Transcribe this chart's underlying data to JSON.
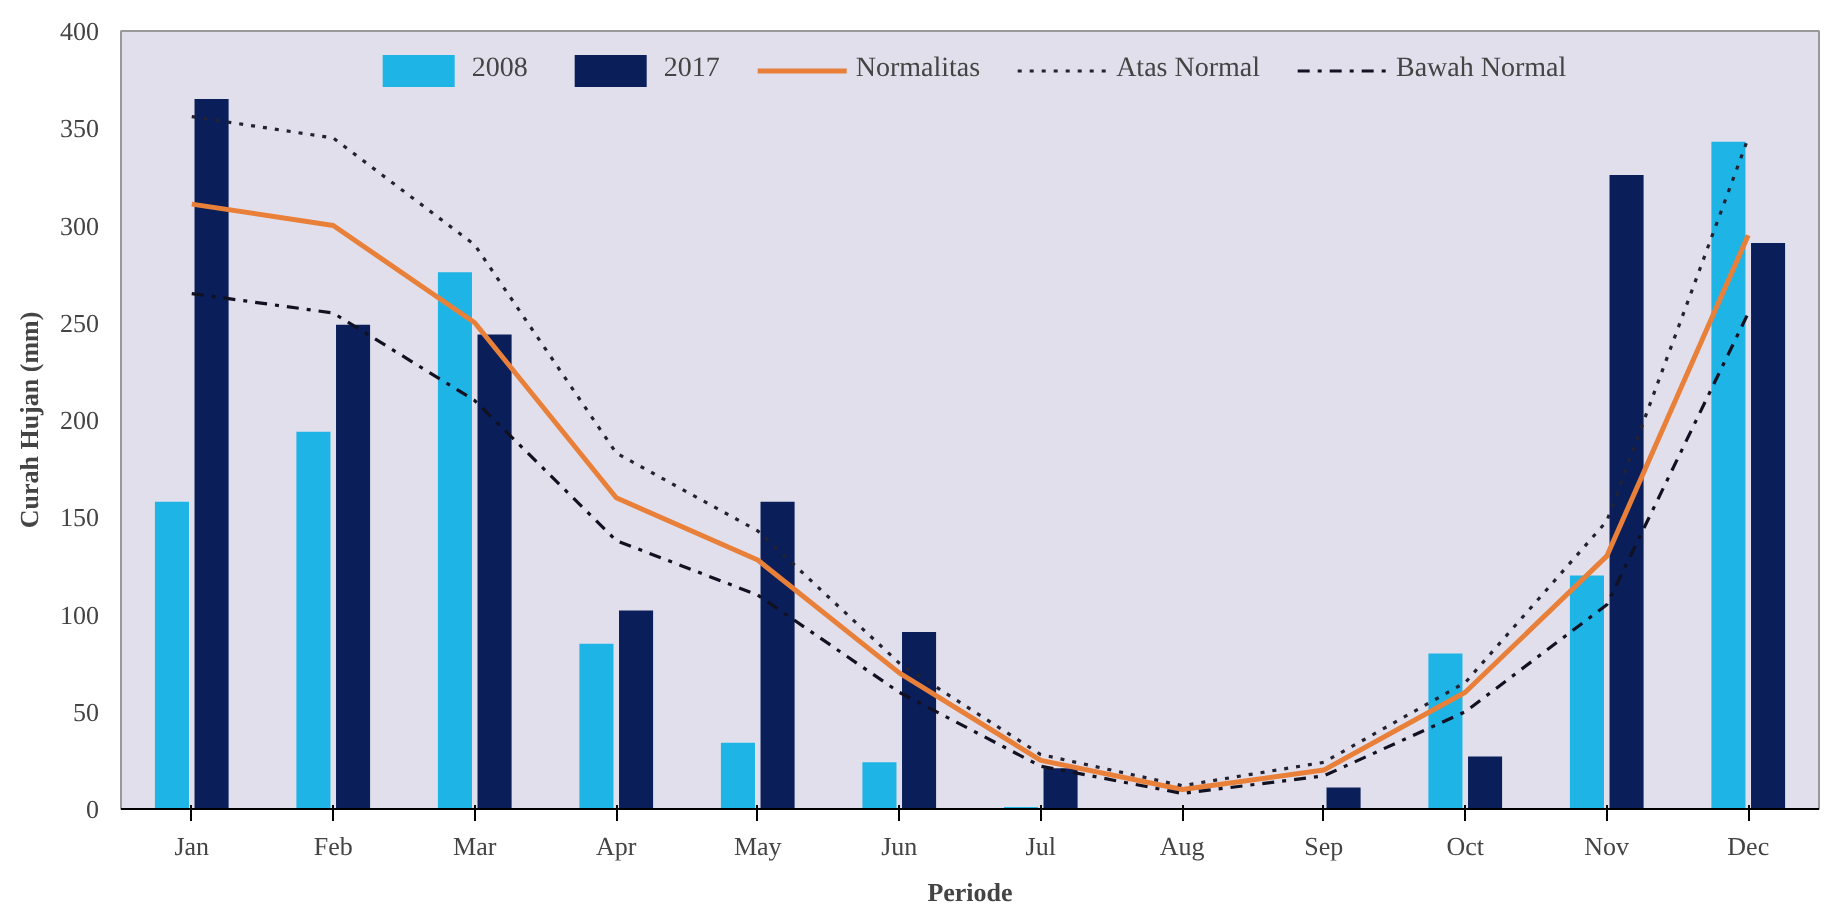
{
  "chart_data": {
    "type": "bar",
    "xlabel": "Periode",
    "ylabel": "Curah Hujan (mm)",
    "categories": [
      "Jan",
      "Feb",
      "Mar",
      "Apr",
      "May",
      "Jun",
      "Jul",
      "Aug",
      "Sep",
      "Oct",
      "Nov",
      "Dec"
    ],
    "series": [
      {
        "name": "2008",
        "color": "#1eb4e6",
        "values": [
          158,
          194,
          276,
          85,
          34,
          24,
          1,
          0,
          0,
          80,
          120,
          343
        ]
      },
      {
        "name": "2017",
        "color": "#0a1e5a",
        "values": [
          365,
          249,
          244,
          102,
          158,
          91,
          21,
          0,
          11,
          27,
          326,
          291
        ]
      },
      {
        "name": "Normalitas",
        "type": "line",
        "color": "#e8803a",
        "line_style": "solid",
        "values": [
          311,
          300,
          250,
          160,
          128,
          70,
          25,
          10,
          20,
          60,
          130,
          295
        ]
      },
      {
        "name": "Atas Normal",
        "type": "line",
        "color": "#222233",
        "line_style": "dotted",
        "values": [
          356,
          345,
          290,
          183,
          143,
          75,
          28,
          12,
          24,
          65,
          148,
          345
        ]
      },
      {
        "name": "Bawah Normal",
        "type": "line",
        "color": "#111122",
        "line_style": "dashdot",
        "values": [
          265,
          255,
          210,
          138,
          110,
          60,
          22,
          8,
          17,
          50,
          105,
          255
        ]
      }
    ],
    "ylim": [
      0,
      400
    ],
    "yticks": [
      0,
      50,
      100,
      150,
      200,
      250,
      300,
      350,
      400
    ],
    "grid": false,
    "legend": "top"
  }
}
